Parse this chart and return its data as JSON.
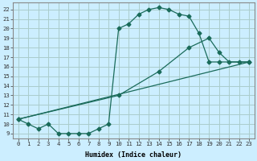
{
  "xlabel": "Humidex (Indice chaleur)",
  "bg_color": "#cceeff",
  "grid_color": "#aacccc",
  "line_color": "#1a6b5a",
  "xlim": [
    -0.5,
    23.5
  ],
  "ylim": [
    8.5,
    22.7
  ],
  "xticks": [
    0,
    1,
    2,
    3,
    4,
    5,
    6,
    7,
    8,
    9,
    10,
    11,
    12,
    13,
    14,
    15,
    16,
    17,
    18,
    19,
    20,
    21,
    22,
    23
  ],
  "yticks": [
    9,
    10,
    11,
    12,
    13,
    14,
    15,
    16,
    17,
    18,
    19,
    20,
    21,
    22
  ],
  "series1_x": [
    0,
    1,
    2,
    3,
    4,
    5,
    6,
    7,
    8,
    9,
    10,
    11,
    12,
    13,
    14,
    15,
    16,
    17,
    18,
    19,
    20,
    21,
    22,
    23
  ],
  "series1_y": [
    10.5,
    10.0,
    9.5,
    10.0,
    9.0,
    9.0,
    9.0,
    9.0,
    9.5,
    10.0,
    20.0,
    20.5,
    21.5,
    22.0,
    22.2,
    22.0,
    21.5,
    21.3,
    19.5,
    16.5,
    16.5,
    16.5,
    16.5,
    16.5
  ],
  "series1_markers_x": [
    0,
    1,
    2,
    3,
    4,
    5,
    6,
    7,
    8,
    9,
    10,
    11,
    12,
    13,
    14,
    15,
    16,
    17,
    18,
    19,
    20,
    23
  ],
  "series1_markers_y": [
    10.5,
    10.0,
    9.5,
    10.0,
    9.0,
    9.0,
    9.0,
    9.0,
    9.5,
    10.0,
    20.0,
    20.5,
    21.5,
    22.0,
    22.2,
    22.0,
    21.5,
    21.3,
    19.5,
    16.5,
    16.5,
    16.5
  ],
  "series2_x": [
    0,
    23
  ],
  "series2_y": [
    10.5,
    16.5
  ],
  "series3_x": [
    0,
    23
  ],
  "series3_y": [
    10.5,
    16.5
  ],
  "series4_x": [
    0,
    10,
    14,
    17,
    19,
    20,
    21,
    22,
    23
  ],
  "series4_y": [
    10.5,
    13.0,
    15.5,
    18.0,
    19.0,
    17.5,
    16.5,
    16.5,
    16.5
  ],
  "series4_markers_x": [
    0,
    10,
    14,
    17,
    19,
    20,
    21,
    22,
    23
  ],
  "series4_markers_y": [
    10.5,
    13.0,
    15.5,
    18.0,
    19.0,
    17.5,
    16.5,
    16.5,
    16.5
  ]
}
